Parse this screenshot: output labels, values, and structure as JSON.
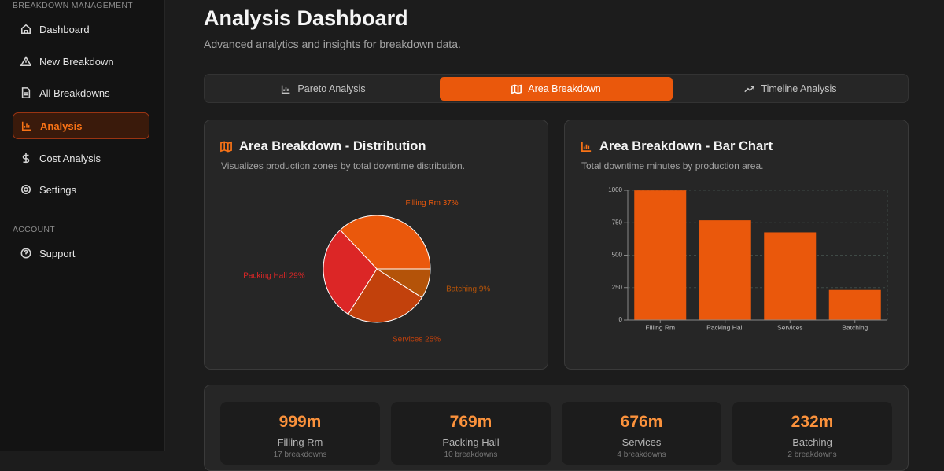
{
  "sidebar": {
    "sections": [
      {
        "title": "BREAKDOWN MANAGEMENT",
        "items": [
          "Dashboard",
          "New Breakdown",
          "All Breakdowns",
          "Analysis",
          "Cost Analysis",
          "Settings"
        ]
      },
      {
        "title": "ACCOUNT",
        "items": [
          "Support"
        ]
      }
    ]
  },
  "header": {
    "title": "Analysis Dashboard",
    "subtitle": "Advanced analytics and insights for breakdown data."
  },
  "tabs": [
    "Pareto Analysis",
    "Area Breakdown",
    "Timeline Analysis"
  ],
  "chart_data": [
    {
      "type": "pie",
      "title": "Area Breakdown - Distribution",
      "subtitle": "Visualizes production zones by total downtime distribution.",
      "categories": [
        "Filling Rm",
        "Batching",
        "Services",
        "Packing Hall"
      ],
      "values": [
        37,
        9,
        25,
        29
      ],
      "value_labels": [
        "37%",
        "9%",
        "25%",
        "29%"
      ],
      "colors": [
        "#ea580c",
        "#b45309",
        "#c2410c",
        "#dc2626"
      ]
    },
    {
      "type": "bar",
      "title": "Area Breakdown - Bar Chart",
      "subtitle": "Total downtime minutes by production area.",
      "categories": [
        "Filling Rm",
        "Packing Hall",
        "Services",
        "Batching"
      ],
      "values": [
        999,
        769,
        676,
        232
      ],
      "color": "#ea580c",
      "ylim": [
        0,
        1000
      ],
      "yticks": [
        0,
        250,
        500,
        750,
        1000
      ],
      "grid": true
    }
  ],
  "summary_cards": [
    {
      "value": "999m",
      "name": "Filling Rm",
      "detail": "17 breakdowns"
    },
    {
      "value": "769m",
      "name": "Packing Hall",
      "detail": "10 breakdowns"
    },
    {
      "value": "676m",
      "name": "Services",
      "detail": "4 breakdowns"
    },
    {
      "value": "232m",
      "name": "Batching",
      "detail": "2 breakdowns"
    }
  ]
}
